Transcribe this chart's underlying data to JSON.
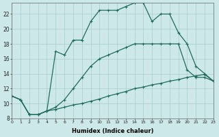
{
  "xlabel": "Humidex (Indice chaleur)",
  "bg_color": "#cce8e8",
  "grid_color": "#aacccc",
  "line_color": "#1e6b5a",
  "xlim": [
    0,
    23
  ],
  "ylim": [
    8,
    23.5
  ],
  "xticks": [
    0,
    1,
    2,
    3,
    4,
    5,
    6,
    7,
    8,
    9,
    10,
    11,
    12,
    13,
    14,
    15,
    16,
    17,
    18,
    19,
    20,
    21,
    22,
    23
  ],
  "yticks": [
    8,
    10,
    12,
    14,
    16,
    18,
    20,
    22
  ],
  "line1_x": [
    0,
    1,
    2,
    3,
    4,
    5,
    6,
    7,
    8,
    9,
    10,
    11,
    12,
    13,
    14,
    15,
    16,
    17,
    18,
    19,
    20,
    21,
    22,
    23
  ],
  "line1_y": [
    11,
    10.5,
    8.5,
    8.5,
    9.0,
    17.0,
    16.5,
    18.5,
    18.5,
    21.0,
    22.5,
    22.5,
    22.5,
    23.0,
    23.5,
    23.5,
    21.0,
    22.0,
    22.0,
    19.5,
    18.0,
    15.0,
    14.0,
    13.0
  ],
  "line2_x": [
    0,
    1,
    2,
    3,
    4,
    5,
    6,
    7,
    8,
    9,
    10,
    11,
    12,
    13,
    14,
    15,
    16,
    17,
    18,
    19,
    20,
    21,
    22,
    23
  ],
  "line2_y": [
    11,
    10.5,
    8.5,
    8.5,
    9.0,
    9.5,
    10.5,
    12.0,
    13.5,
    15.0,
    16.0,
    16.5,
    17.0,
    17.5,
    18.0,
    18.0,
    18.0,
    18.0,
    18.0,
    18.0,
    14.5,
    13.5,
    13.5,
    13.0
  ],
  "line3_x": [
    0,
    1,
    2,
    3,
    4,
    5,
    6,
    7,
    8,
    9,
    10,
    11,
    12,
    13,
    14,
    15,
    16,
    17,
    18,
    19,
    20,
    21,
    22,
    23
  ],
  "line3_y": [
    11,
    10.5,
    8.5,
    8.5,
    9.0,
    9.2,
    9.5,
    9.8,
    10.0,
    10.3,
    10.6,
    11.0,
    11.3,
    11.6,
    12.0,
    12.2,
    12.5,
    12.7,
    13.0,
    13.2,
    13.5,
    13.7,
    13.9,
    13.0
  ]
}
